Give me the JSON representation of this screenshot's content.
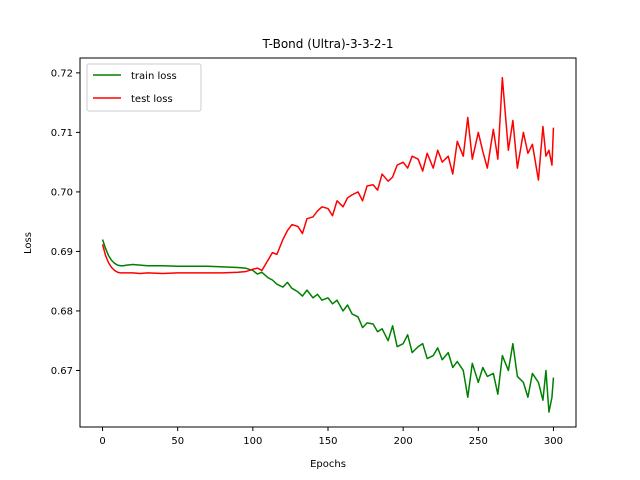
{
  "chart_data": {
    "type": "line",
    "title": "T-Bond (Ultra)-3-3-2-1",
    "xlabel": "Epochs",
    "ylabel": "Loss",
    "xlim": [
      -15,
      315
    ],
    "ylim": [
      0.6605,
      0.7225
    ],
    "xticks": [
      0,
      50,
      100,
      150,
      200,
      250,
      300
    ],
    "yticks": [
      0.67,
      0.68,
      0.69,
      0.7,
      0.71,
      0.72
    ],
    "ytick_labels": [
      "0.67",
      "0.68",
      "0.69",
      "0.70",
      "0.71",
      "0.72"
    ],
    "grid": false,
    "legend": "upper left",
    "series": [
      {
        "name": "train loss",
        "color": "#008000",
        "x": [
          0,
          2,
          4,
          6,
          8,
          10,
          12,
          14,
          16,
          20,
          25,
          30,
          40,
          50,
          60,
          70,
          80,
          90,
          95,
          100,
          103,
          106,
          110,
          113,
          116,
          120,
          123,
          126,
          130,
          133,
          136,
          140,
          143,
          146,
          150,
          153,
          156,
          160,
          163,
          166,
          170,
          173,
          176,
          180,
          183,
          186,
          190,
          193,
          196,
          200,
          203,
          206,
          210,
          213,
          216,
          220,
          223,
          226,
          230,
          233,
          236,
          240,
          243,
          246,
          250,
          253,
          256,
          260,
          263,
          266,
          270,
          273,
          276,
          280,
          283,
          286,
          290,
          293,
          295,
          297,
          299,
          300
        ],
        "values": [
          0.692,
          0.6905,
          0.6893,
          0.6885,
          0.688,
          0.6877,
          0.6876,
          0.6876,
          0.6877,
          0.6878,
          0.6877,
          0.6876,
          0.6876,
          0.6875,
          0.6875,
          0.6875,
          0.6874,
          0.6873,
          0.6872,
          0.6868,
          0.6862,
          0.6865,
          0.6856,
          0.6852,
          0.6845,
          0.684,
          0.6848,
          0.6838,
          0.6832,
          0.6825,
          0.6835,
          0.6822,
          0.6828,
          0.6818,
          0.6822,
          0.6812,
          0.6818,
          0.68,
          0.681,
          0.6795,
          0.679,
          0.6772,
          0.678,
          0.6778,
          0.6765,
          0.677,
          0.675,
          0.6775,
          0.674,
          0.6745,
          0.676,
          0.673,
          0.674,
          0.6745,
          0.672,
          0.6725,
          0.6738,
          0.6718,
          0.673,
          0.6705,
          0.6715,
          0.67,
          0.6655,
          0.6712,
          0.668,
          0.6705,
          0.669,
          0.6695,
          0.666,
          0.6725,
          0.67,
          0.6745,
          0.669,
          0.668,
          0.6655,
          0.6695,
          0.668,
          0.665,
          0.67,
          0.663,
          0.6655,
          0.6688
        ]
      },
      {
        "name": "test loss",
        "color": "#ff0000",
        "x": [
          0,
          2,
          4,
          6,
          8,
          10,
          12,
          14,
          16,
          20,
          25,
          30,
          40,
          50,
          60,
          70,
          80,
          90,
          95,
          100,
          103,
          106,
          110,
          113,
          116,
          120,
          123,
          126,
          130,
          133,
          136,
          140,
          143,
          146,
          150,
          153,
          156,
          160,
          163,
          166,
          170,
          173,
          176,
          180,
          183,
          186,
          190,
          193,
          196,
          200,
          203,
          206,
          210,
          213,
          216,
          220,
          223,
          226,
          230,
          233,
          236,
          240,
          243,
          246,
          250,
          253,
          256,
          260,
          263,
          266,
          270,
          273,
          276,
          280,
          283,
          286,
          290,
          293,
          295,
          297,
          299,
          300
        ],
        "values": [
          0.6912,
          0.6893,
          0.6881,
          0.6873,
          0.6868,
          0.6865,
          0.6864,
          0.6864,
          0.6864,
          0.6864,
          0.6863,
          0.6864,
          0.6863,
          0.6864,
          0.6864,
          0.6864,
          0.6864,
          0.6865,
          0.6866,
          0.687,
          0.6872,
          0.6868,
          0.6885,
          0.6898,
          0.6895,
          0.692,
          0.6935,
          0.6945,
          0.6942,
          0.693,
          0.6955,
          0.6958,
          0.6968,
          0.6975,
          0.6972,
          0.696,
          0.6985,
          0.6975,
          0.699,
          0.6995,
          0.7,
          0.6985,
          0.701,
          0.7012,
          0.7003,
          0.703,
          0.7018,
          0.7025,
          0.7045,
          0.705,
          0.704,
          0.706,
          0.7055,
          0.7035,
          0.7065,
          0.704,
          0.707,
          0.705,
          0.706,
          0.703,
          0.7085,
          0.706,
          0.7125,
          0.7055,
          0.71,
          0.7068,
          0.704,
          0.7105,
          0.7055,
          0.7192,
          0.707,
          0.712,
          0.704,
          0.71,
          0.7065,
          0.708,
          0.702,
          0.711,
          0.706,
          0.707,
          0.7045,
          0.7108
        ]
      }
    ]
  }
}
